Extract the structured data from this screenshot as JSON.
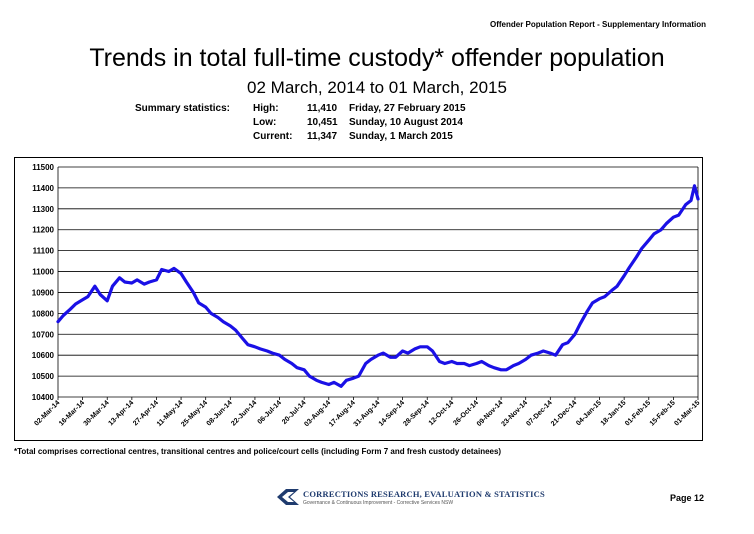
{
  "header": {
    "report": "Offender Population Report - Supplementary Information"
  },
  "footer": {
    "note": "*Total comprises correctional centres, transitional centres and police/court cells (including Form 7 and fresh custody detainees)",
    "org": "CORRECTIONS RESEARCH, EVALUATION & STATISTICS",
    "org_sub": "Governance & Continuous Improvement - Corrective Services NSW",
    "page": "Page 12"
  },
  "summary": {
    "label": "Summary statistics:",
    "rows": [
      {
        "key": "High:",
        "value": "11,410",
        "date": "Friday, 27 February 2015"
      },
      {
        "key": "Low:",
        "value": "10,451",
        "date": "Sunday, 10 August 2014"
      },
      {
        "key": "Current:",
        "value": "11,347",
        "date": "Sunday, 1 March 2015"
      }
    ]
  },
  "chart_data": {
    "type": "line",
    "title": "Trends in total full-time custody* offender population",
    "subtitle": "02 March, 2014 to 01 March, 2015",
    "xlabel": "",
    "ylabel": "",
    "ylim": [
      10400,
      11500
    ],
    "yticks": [
      10400,
      10500,
      10600,
      10700,
      10800,
      10900,
      11000,
      11100,
      11200,
      11300,
      11400,
      11500
    ],
    "grid": true,
    "line_color": "#1a10e6",
    "xticks": [
      "02-Mar-14",
      "16-Mar-14",
      "30-Mar-14",
      "13-Apr-14",
      "27-Apr-14",
      "11-May-14",
      "25-May-14",
      "08-Jun-14",
      "22-Jun-14",
      "06-Jul-14",
      "20-Jul-14",
      "03-Aug-14",
      "17-Aug-14",
      "31-Aug-14",
      "14-Sep-14",
      "28-Sep-14",
      "12-Oct-14",
      "26-Oct-14",
      "09-Nov-14",
      "23-Nov-14",
      "07-Dec-14",
      "21-Dec-14",
      "04-Jan-15",
      "18-Jan-15",
      "01-Feb-15",
      "15-Feb-15",
      "01-Mar-15"
    ],
    "series": [
      {
        "x": [
          "2014-03-02",
          "2014-03-05",
          "2014-03-09",
          "2014-03-12",
          "2014-03-16",
          "2014-03-19",
          "2014-03-23",
          "2014-03-26",
          "2014-03-30",
          "2014-04-02",
          "2014-04-06",
          "2014-04-09",
          "2014-04-13",
          "2014-04-16",
          "2014-04-20",
          "2014-04-23",
          "2014-04-27",
          "2014-04-30",
          "2014-05-04",
          "2014-05-07",
          "2014-05-11",
          "2014-05-14",
          "2014-05-18",
          "2014-05-21",
          "2014-05-25",
          "2014-05-28",
          "2014-06-01",
          "2014-06-04",
          "2014-06-08",
          "2014-06-11",
          "2014-06-15",
          "2014-06-18",
          "2014-06-22",
          "2014-06-25",
          "2014-06-29",
          "2014-07-02",
          "2014-07-06",
          "2014-07-09",
          "2014-07-13",
          "2014-07-16",
          "2014-07-20",
          "2014-07-23",
          "2014-07-27",
          "2014-07-30",
          "2014-08-03",
          "2014-08-06",
          "2014-08-10",
          "2014-08-13",
          "2014-08-17",
          "2014-08-20",
          "2014-08-24",
          "2014-08-27",
          "2014-08-31",
          "2014-09-03",
          "2014-09-07",
          "2014-09-10",
          "2014-09-14",
          "2014-09-17",
          "2014-09-21",
          "2014-09-24",
          "2014-09-28",
          "2014-10-01",
          "2014-10-05",
          "2014-10-08",
          "2014-10-12",
          "2014-10-15",
          "2014-10-19",
          "2014-10-22",
          "2014-10-26",
          "2014-10-29",
          "2014-11-02",
          "2014-11-05",
          "2014-11-09",
          "2014-11-12",
          "2014-11-16",
          "2014-11-19",
          "2014-11-23",
          "2014-11-26",
          "2014-11-30",
          "2014-12-03",
          "2014-12-07",
          "2014-12-10",
          "2014-12-14",
          "2014-12-17",
          "2014-12-21",
          "2014-12-24",
          "2014-12-28",
          "2014-12-31",
          "2015-01-04",
          "2015-01-07",
          "2015-01-11",
          "2015-01-14",
          "2015-01-18",
          "2015-01-21",
          "2015-01-25",
          "2015-01-28",
          "2015-02-01",
          "2015-02-04",
          "2015-02-08",
          "2015-02-11",
          "2015-02-15",
          "2015-02-18",
          "2015-02-22",
          "2015-02-25",
          "2015-02-27",
          "2015-03-01"
        ],
        "values": [
          10760,
          10790,
          10820,
          10845,
          10865,
          10880,
          10930,
          10890,
          10860,
          10930,
          10970,
          10950,
          10945,
          10960,
          10940,
          10950,
          10960,
          11010,
          11000,
          11015,
          10990,
          10950,
          10900,
          10850,
          10830,
          10800,
          10780,
          10760,
          10740,
          10720,
          10680,
          10650,
          10640,
          10630,
          10620,
          10610,
          10600,
          10580,
          10560,
          10540,
          10530,
          10500,
          10480,
          10470,
          10460,
          10470,
          10451,
          10480,
          10490,
          10500,
          10560,
          10580,
          10600,
          10610,
          10590,
          10590,
          10620,
          10610,
          10630,
          10640,
          10640,
          10620,
          10570,
          10560,
          10570,
          10560,
          10560,
          10550,
          10560,
          10570,
          10550,
          10540,
          10530,
          10530,
          10550,
          10560,
          10580,
          10600,
          10610,
          10620,
          10610,
          10600,
          10650,
          10660,
          10700,
          10750,
          10810,
          10850,
          10870,
          10880,
          10910,
          10930,
          10980,
          11020,
          11070,
          11110,
          11150,
          11180,
          11200,
          11230,
          11260,
          11270,
          11320,
          11340,
          11410,
          11347
        ]
      }
    ]
  }
}
